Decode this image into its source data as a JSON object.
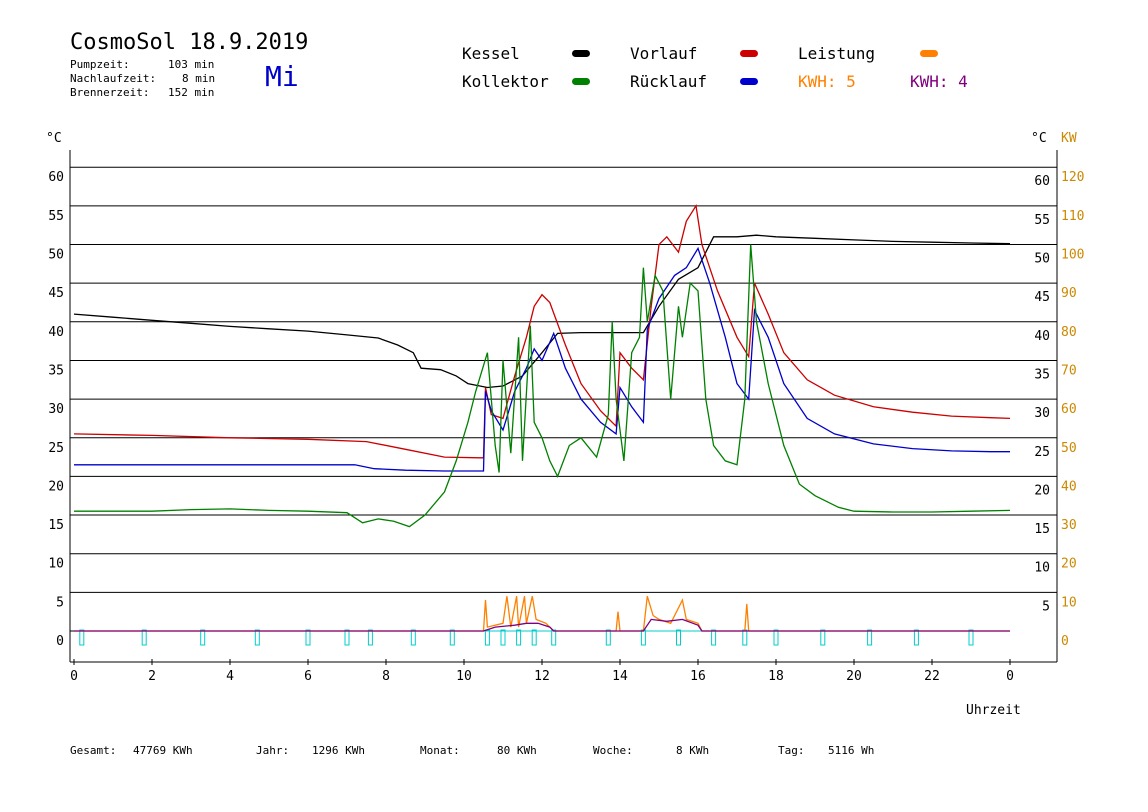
{
  "header": {
    "title": "CosmoSol 18.9.2019",
    "pumpzeit_label": "Pumpzeit:",
    "pumpzeit_value": "103 min",
    "nachlaufzeit_label": "Nachlaufzeit:",
    "nachlaufzeit_value": "8 min",
    "brennerzeit_label": "Brennerzeit:",
    "brennerzeit_value": "152 min",
    "weekday": "Mi"
  },
  "legend": {
    "kessel": "Kessel",
    "kollektor": "Kollektor",
    "vorlauf": "Vorlauf",
    "ruecklauf": "Rücklauf",
    "leistung": "Leistung",
    "kwh_orange": "KWH: 5",
    "kwh_purple": "KWH: 4"
  },
  "colors": {
    "kessel": "#000000",
    "kollektor": "#008000",
    "vorlauf": "#cc0000",
    "ruecklauf": "#0000cc",
    "leistung": "#ff8000",
    "kwh_purple": "#800080",
    "pump": "#00cccc",
    "kw_axis": "#cc8800"
  },
  "footer": {
    "gesamt_label": "Gesamt:",
    "gesamt_value": "47769 KWh",
    "jahr_label": "Jahr:",
    "jahr_value": "1296 KWh",
    "monat_label": "Monat:",
    "monat_value": "80 KWh",
    "woche_label": "Woche:",
    "woche_value": "8 KWh",
    "tag_label": "Tag:",
    "tag_value": "5116 Wh"
  },
  "chart_data": {
    "type": "line",
    "title": "CosmoSol 18.9.2019",
    "xlabel": "Uhrzeit",
    "ylabel_left": "°C",
    "ylabel_right": "°C",
    "ylabel_right2": "KW",
    "xlim": [
      0,
      24
    ],
    "ylim": [
      0,
      60
    ],
    "ylim_kw": [
      0,
      120
    ],
    "grid": "horizontal",
    "x_ticks": [
      "0",
      "2",
      "4",
      "6",
      "8",
      "10",
      "12",
      "14",
      "16",
      "18",
      "20",
      "22",
      "0"
    ],
    "y_ticks": [
      "0",
      "5",
      "10",
      "15",
      "20",
      "25",
      "30",
      "35",
      "40",
      "45",
      "50",
      "55",
      "60"
    ],
    "y_ticks_right": [
      "5",
      "10",
      "15",
      "20",
      "25",
      "30",
      "35",
      "40",
      "45",
      "50",
      "55",
      "60"
    ],
    "y_ticks_kw": [
      "0",
      "10",
      "20",
      "30",
      "40",
      "50",
      "60",
      "70",
      "80",
      "90",
      "100",
      "110",
      "120"
    ],
    "series": [
      {
        "name": "Kessel",
        "color": "#000000",
        "points": [
          [
            0,
            41.0
          ],
          [
            1,
            40.6
          ],
          [
            2,
            40.2
          ],
          [
            3,
            39.8
          ],
          [
            4,
            39.4
          ],
          [
            5,
            39.1
          ],
          [
            6,
            38.8
          ],
          [
            7,
            38.3
          ],
          [
            7.8,
            37.9
          ],
          [
            8.3,
            37.0
          ],
          [
            8.7,
            36.0
          ],
          [
            8.9,
            34.0
          ],
          [
            9.4,
            33.8
          ],
          [
            9.8,
            33.0
          ],
          [
            10.1,
            32.0
          ],
          [
            10.6,
            31.5
          ],
          [
            11.0,
            31.7
          ],
          [
            11.5,
            33.0
          ],
          [
            12.0,
            36.0
          ],
          [
            12.4,
            38.5
          ],
          [
            13.0,
            38.6
          ],
          [
            14.0,
            38.6
          ],
          [
            14.6,
            38.6
          ],
          [
            15.0,
            42.0
          ],
          [
            15.5,
            45.5
          ],
          [
            16.0,
            47.0
          ],
          [
            16.4,
            51.0
          ],
          [
            17.0,
            51.0
          ],
          [
            17.5,
            51.2
          ],
          [
            18.0,
            51.0
          ],
          [
            19.0,
            50.8
          ],
          [
            20.0,
            50.6
          ],
          [
            21.0,
            50.4
          ],
          [
            22.0,
            50.3
          ],
          [
            23.0,
            50.2
          ],
          [
            24,
            50.1
          ]
        ]
      },
      {
        "name": "Vorlauf",
        "color": "#cc0000",
        "points": [
          [
            0,
            25.5
          ],
          [
            2,
            25.3
          ],
          [
            4,
            25.0
          ],
          [
            6,
            24.8
          ],
          [
            7.5,
            24.5
          ],
          [
            8.5,
            23.5
          ],
          [
            9.5,
            22.5
          ],
          [
            10.4,
            22.4
          ],
          [
            10.5,
            22.4
          ],
          [
            10.55,
            31.5
          ],
          [
            10.7,
            28.0
          ],
          [
            11.0,
            27.5
          ],
          [
            11.3,
            33.0
          ],
          [
            11.6,
            38.0
          ],
          [
            11.8,
            42.0
          ],
          [
            12.0,
            43.5
          ],
          [
            12.2,
            42.5
          ],
          [
            12.6,
            37.0
          ],
          [
            13.0,
            32.0
          ],
          [
            13.5,
            28.5
          ],
          [
            13.9,
            26.5
          ],
          [
            14.0,
            36.0
          ],
          [
            14.3,
            34.0
          ],
          [
            14.6,
            32.5
          ],
          [
            14.8,
            42.0
          ],
          [
            15.0,
            50.0
          ],
          [
            15.2,
            51.0
          ],
          [
            15.5,
            49.0
          ],
          [
            15.7,
            53.0
          ],
          [
            15.95,
            55.0
          ],
          [
            16.1,
            50.0
          ],
          [
            16.5,
            44.0
          ],
          [
            17.0,
            38.0
          ],
          [
            17.3,
            35.5
          ],
          [
            17.45,
            45.0
          ],
          [
            17.8,
            41.0
          ],
          [
            18.2,
            36.0
          ],
          [
            18.8,
            32.5
          ],
          [
            19.5,
            30.5
          ],
          [
            20.5,
            29.0
          ],
          [
            21.5,
            28.3
          ],
          [
            22.5,
            27.8
          ],
          [
            23.5,
            27.6
          ],
          [
            24,
            27.5
          ]
        ]
      },
      {
        "name": "Rücklauf",
        "color": "#0000cc",
        "points": [
          [
            0,
            21.5
          ],
          [
            2,
            21.5
          ],
          [
            4,
            21.5
          ],
          [
            6,
            21.5
          ],
          [
            7.2,
            21.5
          ],
          [
            7.7,
            21.0
          ],
          [
            8.5,
            20.8
          ],
          [
            9.5,
            20.7
          ],
          [
            10.4,
            20.7
          ],
          [
            10.5,
            20.7
          ],
          [
            10.55,
            31.0
          ],
          [
            10.7,
            28.5
          ],
          [
            11.0,
            26.0
          ],
          [
            11.3,
            31.0
          ],
          [
            11.6,
            34.0
          ],
          [
            11.8,
            36.5
          ],
          [
            12.0,
            35.0
          ],
          [
            12.3,
            38.5
          ],
          [
            12.6,
            34.0
          ],
          [
            13.0,
            30.0
          ],
          [
            13.5,
            27.0
          ],
          [
            13.9,
            25.5
          ],
          [
            14.0,
            31.5
          ],
          [
            14.3,
            29.0
          ],
          [
            14.6,
            27.0
          ],
          [
            14.7,
            39.0
          ],
          [
            15.0,
            43.0
          ],
          [
            15.4,
            46.0
          ],
          [
            15.7,
            47.0
          ],
          [
            16.0,
            49.5
          ],
          [
            16.3,
            45.0
          ],
          [
            16.7,
            38.0
          ],
          [
            17.0,
            32.0
          ],
          [
            17.3,
            30.0
          ],
          [
            17.45,
            41.5
          ],
          [
            17.8,
            38.0
          ],
          [
            18.2,
            32.0
          ],
          [
            18.8,
            27.5
          ],
          [
            19.5,
            25.5
          ],
          [
            20.5,
            24.2
          ],
          [
            21.5,
            23.6
          ],
          [
            22.5,
            23.3
          ],
          [
            23.5,
            23.2
          ],
          [
            24,
            23.2
          ]
        ]
      },
      {
        "name": "Kollektor",
        "color": "#008000",
        "points": [
          [
            0,
            15.5
          ],
          [
            1,
            15.5
          ],
          [
            2,
            15.5
          ],
          [
            3,
            15.7
          ],
          [
            4,
            15.8
          ],
          [
            5,
            15.6
          ],
          [
            6,
            15.5
          ],
          [
            7,
            15.3
          ],
          [
            7.4,
            14.0
          ],
          [
            7.8,
            14.5
          ],
          [
            8.2,
            14.2
          ],
          [
            8.6,
            13.5
          ],
          [
            9.0,
            15.0
          ],
          [
            9.5,
            18.0
          ],
          [
            9.8,
            22.0
          ],
          [
            10.1,
            27.0
          ],
          [
            10.3,
            31.0
          ],
          [
            10.6,
            36.0
          ],
          [
            10.8,
            24.0
          ],
          [
            10.9,
            20.5
          ],
          [
            11.0,
            35.0
          ],
          [
            11.2,
            23.0
          ],
          [
            11.4,
            38.0
          ],
          [
            11.5,
            22.0
          ],
          [
            11.7,
            39.5
          ],
          [
            11.8,
            27.0
          ],
          [
            12.0,
            25.0
          ],
          [
            12.2,
            22.0
          ],
          [
            12.4,
            20.0
          ],
          [
            12.7,
            24.0
          ],
          [
            13.0,
            25.0
          ],
          [
            13.4,
            22.5
          ],
          [
            13.7,
            28.0
          ],
          [
            13.8,
            40.0
          ],
          [
            13.9,
            30.0
          ],
          [
            14.1,
            22.0
          ],
          [
            14.3,
            36.0
          ],
          [
            14.5,
            38.0
          ],
          [
            14.6,
            47.0
          ],
          [
            14.7,
            40.0
          ],
          [
            14.9,
            46.0
          ],
          [
            15.1,
            44.0
          ],
          [
            15.3,
            30.0
          ],
          [
            15.5,
            42.0
          ],
          [
            15.6,
            38.0
          ],
          [
            15.8,
            45.0
          ],
          [
            16.0,
            44.0
          ],
          [
            16.2,
            30.0
          ],
          [
            16.4,
            24.0
          ],
          [
            16.7,
            22.0
          ],
          [
            17.0,
            21.5
          ],
          [
            17.2,
            30.0
          ],
          [
            17.35,
            50.0
          ],
          [
            17.5,
            40.0
          ],
          [
            17.8,
            32.0
          ],
          [
            18.2,
            24.0
          ],
          [
            18.6,
            19.0
          ],
          [
            19.0,
            17.5
          ],
          [
            19.6,
            16.0
          ],
          [
            20.0,
            15.5
          ],
          [
            21.0,
            15.4
          ],
          [
            22.0,
            15.4
          ],
          [
            23.0,
            15.5
          ],
          [
            24,
            15.6
          ]
        ]
      },
      {
        "name": "Leistung",
        "color": "#ff8000",
        "axis": "KW",
        "points": [
          [
            0,
            0
          ],
          [
            10.5,
            0
          ],
          [
            10.55,
            8
          ],
          [
            10.6,
            1
          ],
          [
            11.0,
            2
          ],
          [
            11.1,
            9
          ],
          [
            11.2,
            1
          ],
          [
            11.35,
            9
          ],
          [
            11.4,
            1
          ],
          [
            11.55,
            9
          ],
          [
            11.6,
            2
          ],
          [
            11.75,
            9
          ],
          [
            11.85,
            3
          ],
          [
            12.1,
            2
          ],
          [
            12.3,
            0
          ],
          [
            13.9,
            0
          ],
          [
            13.95,
            5
          ],
          [
            14.0,
            0
          ],
          [
            14.6,
            0
          ],
          [
            14.7,
            9
          ],
          [
            14.85,
            4
          ],
          [
            15.0,
            3
          ],
          [
            15.3,
            2
          ],
          [
            15.6,
            8
          ],
          [
            15.7,
            3
          ],
          [
            16.0,
            2
          ],
          [
            16.1,
            0
          ],
          [
            17.2,
            0
          ],
          [
            17.25,
            7
          ],
          [
            17.3,
            0
          ],
          [
            24,
            0
          ]
        ]
      },
      {
        "name": "KWH",
        "color": "#800080",
        "axis": "KW",
        "points": [
          [
            0,
            0
          ],
          [
            10.5,
            0
          ],
          [
            10.8,
            1
          ],
          [
            11.3,
            1.5
          ],
          [
            11.6,
            2
          ],
          [
            11.9,
            2
          ],
          [
            12.2,
            1
          ],
          [
            12.3,
            0
          ],
          [
            14.6,
            0
          ],
          [
            14.8,
            3
          ],
          [
            15.2,
            2.5
          ],
          [
            15.6,
            3
          ],
          [
            16.0,
            1.5
          ],
          [
            16.1,
            0
          ],
          [
            24,
            0
          ]
        ]
      }
    ],
    "pump_markers": [
      0.2,
      1.8,
      3.3,
      4.7,
      6.0,
      7.0,
      7.6,
      8.7,
      9.7,
      10.6,
      11.0,
      11.4,
      11.8,
      12.3,
      13.7,
      14.6,
      15.5,
      16.4,
      17.2,
      18.0,
      19.2,
      20.4,
      21.6,
      23.0
    ]
  }
}
